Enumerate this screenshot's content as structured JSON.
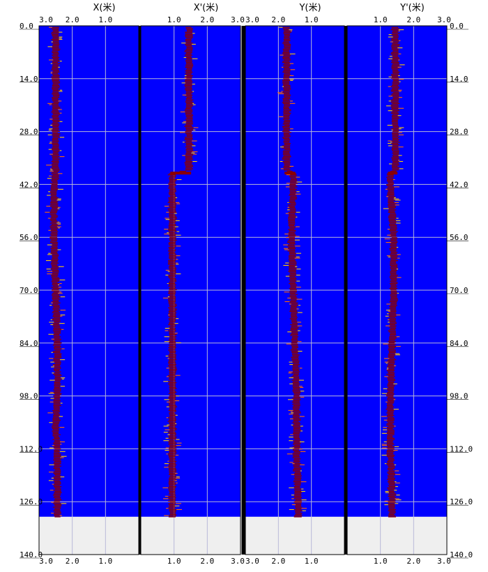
{
  "chart_data": {
    "type": "line",
    "y_axis": {
      "range": [
        0,
        140
      ],
      "ticks": [
        "0.0",
        "14.0",
        "28.0",
        "42.0",
        "56.0",
        "70.0",
        "84.0",
        "98.0",
        "112.0",
        "126.0",
        "140.0"
      ],
      "inverted": true,
      "grid": true
    },
    "tracks": [
      {
        "title": "X(米)",
        "x_ticks": [
          "3.0",
          "2.0",
          "1.0"
        ],
        "x_range": [
          3.0,
          0.0
        ],
        "color_bg": "#0000ff",
        "depth_end": 130,
        "profile": [
          [
            0,
            2.5
          ],
          [
            14,
            2.5
          ],
          [
            28,
            2.5
          ],
          [
            38,
            2.5
          ],
          [
            42,
            2.55
          ],
          [
            56,
            2.55
          ],
          [
            70,
            2.5
          ],
          [
            84,
            2.45
          ],
          [
            98,
            2.45
          ],
          [
            106,
            2.5
          ],
          [
            112,
            2.45
          ],
          [
            126,
            2.45
          ],
          [
            130,
            2.45
          ]
        ]
      },
      {
        "title": "X'(米)",
        "x_ticks": [
          "1.0",
          "2.0",
          "3.0"
        ],
        "x_range": [
          0.0,
          3.0
        ],
        "color_bg": "#0000ff",
        "depth_end": 130,
        "profile": [
          [
            0,
            1.45
          ],
          [
            14,
            1.45
          ],
          [
            28,
            1.45
          ],
          [
            38,
            1.45
          ],
          [
            39,
            0.95
          ],
          [
            42,
            0.95
          ],
          [
            56,
            0.95
          ],
          [
            70,
            0.95
          ],
          [
            84,
            0.95
          ],
          [
            98,
            0.95
          ],
          [
            112,
            0.95
          ],
          [
            126,
            0.95
          ],
          [
            130,
            0.95
          ]
        ]
      },
      {
        "title": "Y(米)",
        "x_ticks": [
          "3.0",
          "2.0",
          "1.0"
        ],
        "x_range": [
          3.0,
          0.0
        ],
        "color_bg": "#0000ff",
        "depth_end": 130,
        "profile": [
          [
            0,
            1.75
          ],
          [
            14,
            1.75
          ],
          [
            28,
            1.75
          ],
          [
            38,
            1.75
          ],
          [
            39,
            1.55
          ],
          [
            42,
            1.55
          ],
          [
            56,
            1.6
          ],
          [
            70,
            1.55
          ],
          [
            84,
            1.5
          ],
          [
            98,
            1.45
          ],
          [
            112,
            1.45
          ],
          [
            126,
            1.4
          ],
          [
            130,
            1.4
          ]
        ]
      },
      {
        "title": "Y'(米)",
        "x_ticks": [
          "1.0",
          "2.0",
          "3.0"
        ],
        "x_range": [
          0.0,
          3.0
        ],
        "color_bg": "#0000ff",
        "depth_end": 130,
        "profile": [
          [
            0,
            1.45
          ],
          [
            14,
            1.45
          ],
          [
            28,
            1.45
          ],
          [
            38,
            1.45
          ],
          [
            39,
            1.3
          ],
          [
            42,
            1.3
          ],
          [
            56,
            1.4
          ],
          [
            70,
            1.4
          ],
          [
            84,
            1.35
          ],
          [
            98,
            1.3
          ],
          [
            112,
            1.3
          ],
          [
            126,
            1.35
          ],
          [
            130,
            1.35
          ]
        ]
      }
    ]
  }
}
